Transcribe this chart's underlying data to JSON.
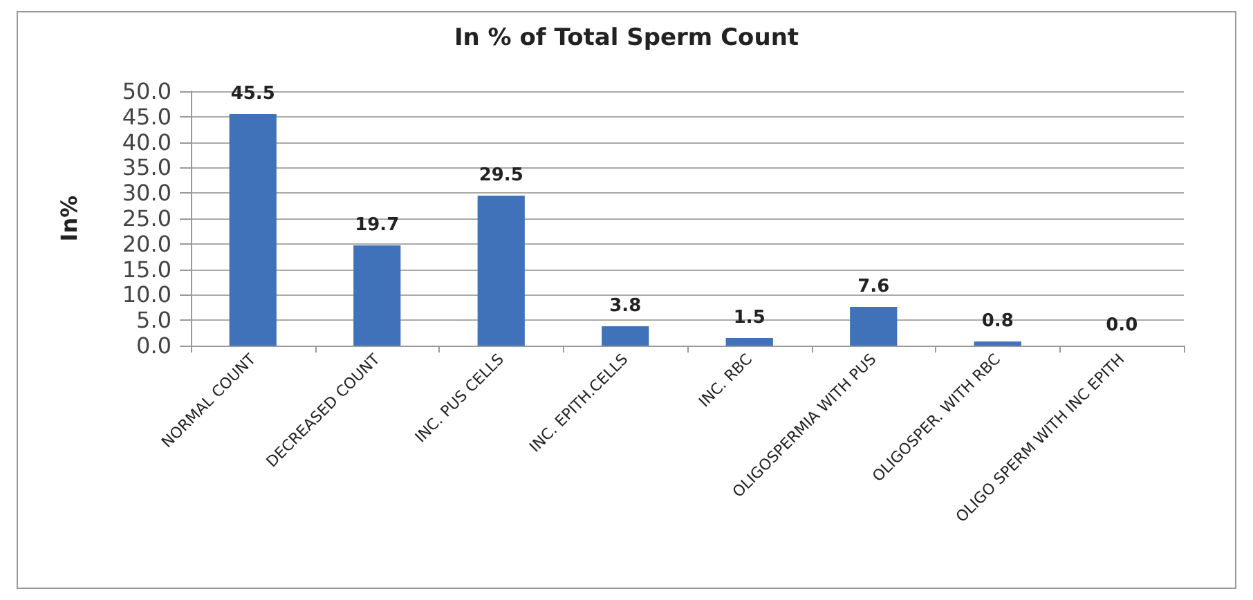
{
  "chart_data": {
    "type": "bar",
    "title": "In % of Total Sperm Count",
    "ylabel": "In%",
    "categories": [
      "NORMAL COUNT",
      "DECREASED COUNT",
      "INC. PUS CELLS",
      "INC. EPITH.CELLS",
      "INC. RBC",
      "OLIGOSPERMIA WITH PUS",
      "OLIGOSPER. WITH RBC",
      "OLIGO SPERM WITH INC EPITH"
    ],
    "values": [
      45.5,
      19.7,
      29.5,
      3.8,
      1.5,
      7.6,
      0.8,
      0
    ],
    "value_labels": [
      "45.5",
      "19.7",
      "29.5",
      "3.8",
      "1.5",
      "7.6",
      "0.8",
      "0.0"
    ],
    "color": "#3f72b8",
    "ylim": [
      0,
      50
    ],
    "yticks": [
      {
        "value": 0,
        "label": "0.0"
      },
      {
        "value": 5,
        "label": "5.0"
      },
      {
        "value": 10,
        "label": "10.0"
      },
      {
        "value": 15,
        "label": "15.0"
      },
      {
        "value": 20,
        "label": "20.0"
      },
      {
        "value": 25,
        "label": "25.0"
      },
      {
        "value": 30,
        "label": "30.0"
      },
      {
        "value": 35,
        "label": "35.0"
      },
      {
        "value": 40,
        "label": "40.0"
      },
      {
        "value": 45,
        "label": "45.0"
      },
      {
        "value": 50,
        "label": "50.0"
      }
    ],
    "grid": "y"
  }
}
